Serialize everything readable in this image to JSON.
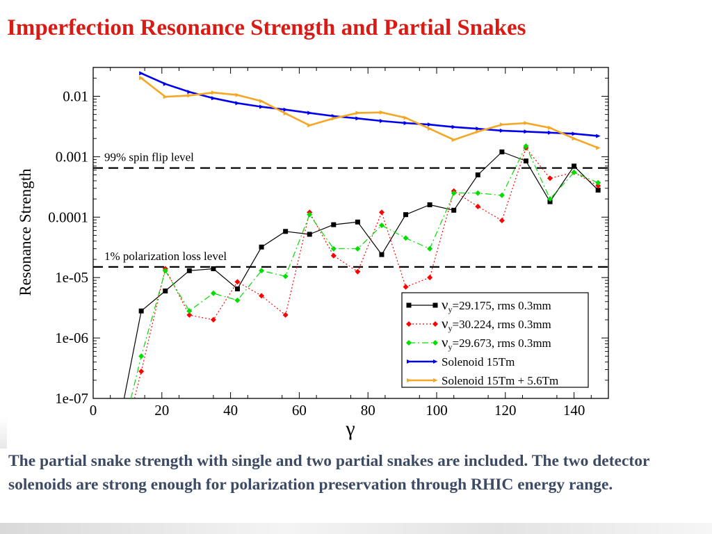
{
  "slide": {
    "title": "Imperfection Resonance Strength and Partial Snakes",
    "caption": "The partial snake strength with single and two partial snakes are included. The two detector solenoids are strong enough for polarization preservation through RHIC energy range."
  },
  "colors": {
    "title": "#d81b14",
    "caption": "#3d4a63",
    "series_black": "#000000",
    "series_red": "#ff0000",
    "series_green": "#00dd00",
    "series_blue": "#0000ee",
    "series_orange": "#f5a623"
  },
  "chart_data": {
    "type": "line",
    "xlabel": "γ",
    "ylabel": "Resonance Strength",
    "yscale": "log",
    "xlim": [
      0,
      150
    ],
    "ylim": [
      1e-07,
      0.03
    ],
    "xticks": [
      0,
      20,
      40,
      60,
      80,
      100,
      120,
      140
    ],
    "xtick_labels": [
      "0",
      "20",
      "40",
      "60",
      "80",
      "100",
      "120",
      "140"
    ],
    "yticks": [
      1e-07,
      1e-06,
      1e-05,
      0.0001,
      0.001,
      0.01
    ],
    "ytick_labels": [
      "1e-07",
      "1e-06",
      "1e-05",
      "0.0001",
      "0.001",
      "0.01"
    ],
    "hlines": [
      {
        "y": 0.00065,
        "label": "99% spin flip level"
      },
      {
        "y": 1.5e-05,
        "label": "1% polarization loss level"
      }
    ],
    "legend_position": "bottom-right",
    "series": [
      {
        "name": "black",
        "legend_symbol": "ν",
        "legend_sub": "y",
        "legend_text": "=29.175, rms 0.3mm",
        "style": "solid",
        "marker": "square",
        "color": "#000000",
        "x": [
          9,
          14,
          21,
          28,
          35,
          42,
          49,
          56,
          63,
          70,
          77,
          84,
          91,
          98,
          105,
          112,
          119,
          126,
          133,
          140,
          147
        ],
        "y": [
          1e-07,
          2.8e-06,
          6e-06,
          1.3e-05,
          1.4e-05,
          6.5e-06,
          3.2e-05,
          5.8e-05,
          5.2e-05,
          7.5e-05,
          8.3e-05,
          2.4e-05,
          0.00011,
          0.00016,
          0.00013,
          0.0005,
          0.0012,
          0.00085,
          0.00018,
          0.0007,
          0.00028
        ]
      },
      {
        "name": "red",
        "legend_symbol": "ν",
        "legend_sub": "y",
        "legend_text": "=30.224, rms 0.3mm",
        "style": "dotted",
        "marker": "diamond",
        "color": "#ff0000",
        "x": [
          12,
          14,
          21,
          28,
          35,
          42,
          49,
          56,
          63,
          70,
          77,
          84,
          91,
          98,
          105,
          112,
          119,
          126,
          133,
          140,
          147
        ],
        "y": [
          1e-07,
          2.8e-07,
          1.4e-05,
          2.4e-06,
          2e-06,
          8.5e-06,
          5e-06,
          2.4e-06,
          0.00012,
          2.3e-05,
          1.25e-05,
          0.00012,
          7e-06,
          1e-05,
          0.00027,
          0.00015,
          8.8e-05,
          0.0014,
          0.00044,
          0.00055,
          0.00033
        ]
      },
      {
        "name": "green",
        "legend_symbol": "ν",
        "legend_sub": "y",
        "legend_text": "=29.673, rms 0.3mm",
        "style": "dashdot",
        "marker": "diamond",
        "color": "#00dd00",
        "x": [
          11,
          14,
          21,
          28,
          35,
          42,
          49,
          56,
          63,
          70,
          77,
          84,
          91,
          98,
          105,
          112,
          119,
          126,
          133,
          140,
          147
        ],
        "y": [
          1e-07,
          5e-07,
          1.3e-05,
          2.8e-06,
          5.5e-06,
          4.2e-06,
          1.3e-05,
          1.05e-05,
          0.00011,
          3e-05,
          3e-05,
          7.3e-05,
          4.5e-05,
          3e-05,
          0.00025,
          0.00025,
          0.00023,
          0.0015,
          0.0002,
          0.00055,
          0.00037
        ]
      },
      {
        "name": "blue",
        "legend_symbol": "",
        "legend_sub": "",
        "legend_text": "Solenoid 15Tm",
        "style": "solid",
        "marker": "arrow",
        "color": "#0000ee",
        "x": [
          14,
          21,
          28,
          35,
          42,
          49,
          56,
          63,
          70,
          77,
          84,
          91,
          98,
          105,
          112,
          119,
          126,
          133,
          140,
          147
        ],
        "y": [
          0.024,
          0.016,
          0.0118,
          0.0093,
          0.0077,
          0.0067,
          0.006,
          0.0053,
          0.0047,
          0.0043,
          0.0039,
          0.0036,
          0.0034,
          0.0031,
          0.0029,
          0.0027,
          0.0026,
          0.0025,
          0.0024,
          0.0022
        ]
      },
      {
        "name": "orange",
        "legend_symbol": "",
        "legend_sub": "",
        "legend_text": "Solenoid 15Tm + 5.6Tm",
        "style": "solid",
        "marker": "arrow",
        "color": "#f5a623",
        "x": [
          14,
          21,
          28,
          35,
          42,
          49,
          56,
          63,
          70,
          77,
          84,
          91,
          98,
          105,
          112,
          119,
          126,
          133,
          140,
          147
        ],
        "y": [
          0.02,
          0.0098,
          0.0103,
          0.0115,
          0.0105,
          0.0083,
          0.0052,
          0.0033,
          0.0043,
          0.0053,
          0.0054,
          0.0044,
          0.0029,
          0.0019,
          0.0026,
          0.0034,
          0.0036,
          0.003,
          0.002,
          0.0014
        ]
      }
    ]
  }
}
